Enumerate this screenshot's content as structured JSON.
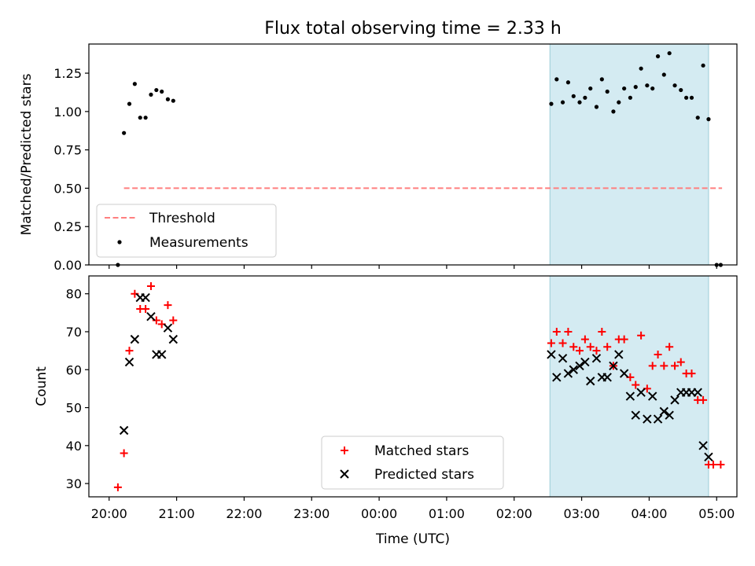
{
  "figure": {
    "title": "Flux total observing time = 2.33 h"
  },
  "chart_data": [
    {
      "type": "scatter",
      "panel": "top",
      "xlabel": "",
      "ylabel": "Matched/Predicted stars",
      "x_unit": "hours since 20:00 UTC",
      "xlim": [
        -0.3,
        9.3
      ],
      "ylim": [
        0.0,
        1.44
      ],
      "yticks": [
        0.0,
        0.25,
        0.5,
        0.75,
        1.0,
        1.25
      ],
      "ytick_labels": [
        "0.00",
        "0.25",
        "0.50",
        "0.75",
        "1.00",
        "1.25"
      ],
      "grid": false,
      "legend_position": "lower-left",
      "highlight_span": {
        "x": [
          6.53,
          8.88
        ],
        "color": "#add8e6"
      },
      "series": [
        {
          "name": "Threshold",
          "kind": "dashed-line",
          "color": "#ff7f7f",
          "x": [
            0.22,
            9.08
          ],
          "y": [
            0.5,
            0.5
          ]
        },
        {
          "name": "Measurements",
          "kind": "dots",
          "color": "#000000",
          "x": [
            0.13,
            0.22,
            0.3,
            0.38,
            0.46,
            0.54,
            0.62,
            0.7,
            0.78,
            0.87,
            0.95,
            6.55,
            6.63,
            6.72,
            6.8,
            6.88,
            6.97,
            7.05,
            7.13,
            7.22,
            7.3,
            7.38,
            7.47,
            7.55,
            7.63,
            7.72,
            7.8,
            7.88,
            7.97,
            8.05,
            8.13,
            8.22,
            8.3,
            8.38,
            8.47,
            8.55,
            8.63,
            8.72,
            8.8,
            8.88,
            9.0,
            9.06
          ],
          "y": [
            0.0,
            0.86,
            1.05,
            1.18,
            0.96,
            0.96,
            1.11,
            1.14,
            1.13,
            1.08,
            1.07,
            1.05,
            1.21,
            1.06,
            1.19,
            1.1,
            1.06,
            1.09,
            1.15,
            1.03,
            1.21,
            1.13,
            1.0,
            1.06,
            1.15,
            1.09,
            1.16,
            1.28,
            1.17,
            1.15,
            1.36,
            1.24,
            1.38,
            1.17,
            1.14,
            1.09,
            1.09,
            0.96,
            1.3,
            0.95,
            0.0,
            0.0
          ]
        }
      ]
    },
    {
      "type": "scatter",
      "panel": "bottom",
      "xlabel": "Time (UTC)",
      "ylabel": "Count",
      "x_unit": "hours since 20:00 UTC",
      "xlim": [
        -0.3,
        9.3
      ],
      "ylim": [
        26.5,
        84.7
      ],
      "yticks": [
        30,
        40,
        50,
        60,
        70,
        80
      ],
      "xticks": [
        0,
        1,
        2,
        3,
        4,
        5,
        6,
        7,
        8,
        9
      ],
      "xtick_labels": [
        "20:00",
        "21:00",
        "22:00",
        "23:00",
        "00:00",
        "01:00",
        "02:00",
        "03:00",
        "04:00",
        "05:00"
      ],
      "grid": false,
      "legend_position": "lower-center",
      "highlight_span": {
        "x": [
          6.53,
          8.88
        ],
        "color": "#add8e6"
      },
      "series": [
        {
          "name": "Matched stars",
          "marker": "plus",
          "color": "#ff0000",
          "x": [
            0.13,
            0.22,
            0.3,
            0.38,
            0.46,
            0.54,
            0.62,
            0.7,
            0.78,
            0.87,
            0.95,
            6.55,
            6.63,
            6.72,
            6.8,
            6.88,
            6.97,
            7.05,
            7.13,
            7.22,
            7.3,
            7.38,
            7.47,
            7.55,
            7.63,
            7.72,
            7.8,
            7.88,
            7.97,
            8.05,
            8.13,
            8.22,
            8.3,
            8.38,
            8.47,
            8.55,
            8.63,
            8.72,
            8.8,
            8.88,
            8.95,
            9.06
          ],
          "y": [
            29,
            38,
            65,
            80,
            76,
            76,
            82,
            73,
            72,
            77,
            73,
            67,
            70,
            67,
            70,
            66,
            65,
            68,
            66,
            65,
            70,
            66,
            61,
            68,
            68,
            58,
            56,
            69,
            55,
            61,
            64,
            61,
            66,
            61,
            62,
            59,
            59,
            52,
            52,
            35,
            35,
            35
          ]
        },
        {
          "name": "Predicted stars",
          "marker": "x",
          "color": "#000000",
          "x": [
            0.22,
            0.3,
            0.38,
            0.46,
            0.54,
            0.62,
            0.7,
            0.78,
            0.87,
            0.95,
            6.55,
            6.63,
            6.72,
            6.8,
            6.88,
            6.97,
            7.05,
            7.13,
            7.22,
            7.3,
            7.38,
            7.47,
            7.55,
            7.63,
            7.72,
            7.8,
            7.88,
            7.97,
            8.05,
            8.13,
            8.22,
            8.3,
            8.38,
            8.47,
            8.55,
            8.63,
            8.72,
            8.8,
            8.88
          ],
          "y": [
            44,
            62,
            68,
            79,
            79,
            74,
            64,
            64,
            71,
            68,
            64,
            58,
            63,
            59,
            60,
            61,
            62,
            57,
            63,
            58,
            58,
            61,
            64,
            59,
            53,
            48,
            54,
            47,
            53,
            47,
            49,
            48,
            52,
            54,
            54,
            54,
            54,
            40,
            37
          ]
        }
      ]
    }
  ]
}
